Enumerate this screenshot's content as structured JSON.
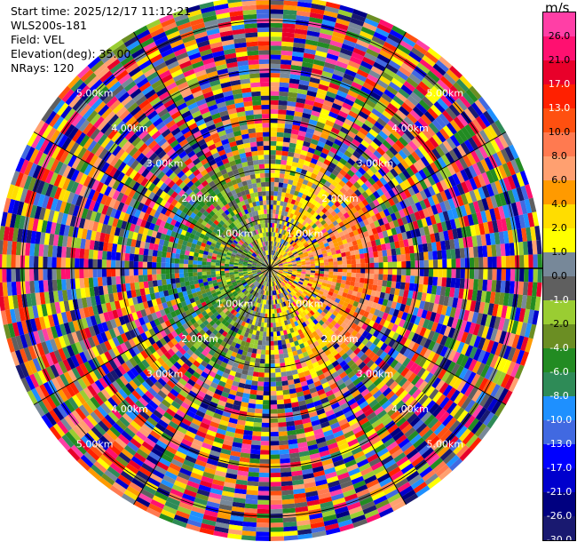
{
  "info": {
    "start_time": "Start time: 2025/12/17 11:12:21",
    "station": "WLS200s-181",
    "field": "Field: VEL",
    "elevation": "Elevation(deg): 35.00",
    "nrays": "NRays: 120"
  },
  "colorbar": {
    "unit": "m/s",
    "labels": [
      "26.0",
      "21.0",
      "17.0",
      "13.0",
      "10.0",
      "8.0",
      "6.0",
      "4.0",
      "2.0",
      "1.0",
      "0.0",
      "-1.0",
      "-2.0",
      "-4.0",
      "-6.0",
      "-8.0",
      "-10.0",
      "-13.0",
      "-17.0",
      "-21.0",
      "-26.0",
      "-30.0"
    ],
    "colors": [
      "#ff3fa6",
      "#ff1070",
      "#e8002a",
      "#ff2000",
      "#ff5010",
      "#ff7a50",
      "#ffa070",
      "#ff9a00",
      "#ffdd00",
      "#ffff00",
      "#778899",
      "#5f5f5f",
      "#9acd32",
      "#6b8e23",
      "#228b22",
      "#2e8b57",
      "#1e90ff",
      "#4169e1",
      "#0000ff",
      "#0000cd",
      "#000080",
      "#191970"
    ],
    "text_colors": [
      "#000",
      "#000",
      "#fff",
      "#fff",
      "#000",
      "#000",
      "#000",
      "#000",
      "#000",
      "#000",
      "#000",
      "#fff",
      "#000",
      "#fff",
      "#fff",
      "#fff",
      "#fff",
      "#fff",
      "#fff",
      "#fff",
      "#fff",
      "#fff"
    ]
  },
  "chart_data": {
    "type": "heatmap",
    "projection": "polar PPI scan",
    "field": "VEL",
    "units": "m/s",
    "n_rays": 120,
    "range_rings_km": [
      {
        "label": "1.00km",
        "range": 1
      },
      {
        "label": "2.00km",
        "range": 2
      },
      {
        "label": "3.00km",
        "range": 3
      },
      {
        "label": "4.00km",
        "range": 4
      },
      {
        "label": "5.00km",
        "range": 5
      }
    ],
    "value_range": [
      -30,
      30
    ],
    "pattern": "Negative (approaching, blue/green) velocities on the west side and positive (receding, red/orange) velocities on the east side near the center; outer ranges are noise with random colors across the full scale."
  }
}
